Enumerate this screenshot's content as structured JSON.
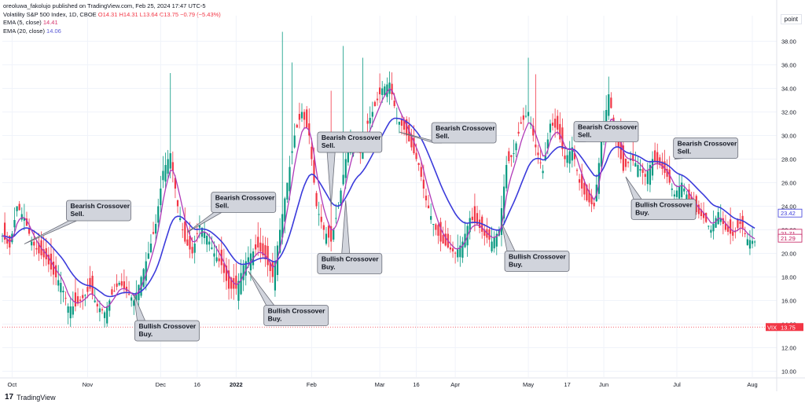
{
  "header": {
    "publisher": "oreoluwa_fakolujo published on TradingView.com, Feb 25, 2024 17:47 UTC-5",
    "symbol_line": "Volatility S&P 500 Index, 1D, CBOE",
    "ohlc": {
      "o": "O14.31",
      "h": "H14.31",
      "l": "L13.64",
      "c": "C13.75",
      "chg": "−0.79 (−5.43%)"
    },
    "ema5_label": "EMA (5, close)",
    "ema5_value": "14.41",
    "ema20_label": "EMA (20, close)",
    "ema20_value": "14.06"
  },
  "settings_label": "point",
  "footer": {
    "logo": "17",
    "brand": "TradingView"
  },
  "colors": {
    "up": "#089981",
    "down": "#f23645",
    "ema5": "#c2185b",
    "ema20": "#3b3bdb",
    "ema5_line": "#b03ab8"
  },
  "chart_data": {
    "type": "candlestick",
    "title": "Volatility S&P 500 Index, 1D, CBOE",
    "y_ticks": [
      "38.00",
      "36.00",
      "34.00",
      "32.00",
      "30.00",
      "28.00",
      "26.00",
      "24.00",
      "22.00",
      "20.00",
      "18.00",
      "16.00",
      "14.00",
      "12.00",
      "10.00"
    ],
    "ylim": [
      9.5,
      39.5
    ],
    "x_ticks": [
      {
        "label": "Oct",
        "day": 4,
        "bold": false
      },
      {
        "label": "Nov",
        "day": 35,
        "bold": false
      },
      {
        "label": "Dec",
        "day": 65,
        "bold": false
      },
      {
        "label": "16",
        "day": 80,
        "bold": false
      },
      {
        "label": "2022",
        "day": 96,
        "bold": true
      },
      {
        "label": "Feb",
        "day": 127,
        "bold": false
      },
      {
        "label": "Mar",
        "day": 155,
        "bold": false
      },
      {
        "label": "16",
        "day": 170,
        "bold": false
      },
      {
        "label": "Apr",
        "day": 186,
        "bold": false
      },
      {
        "label": "May",
        "day": 216,
        "bold": false
      },
      {
        "label": "17",
        "day": 232,
        "bold": false
      },
      {
        "label": "Jun",
        "day": 247,
        "bold": false
      },
      {
        "label": "Jul",
        "day": 277,
        "bold": false
      },
      {
        "label": "Aug",
        "day": 308,
        "bold": false
      }
    ],
    "xlim": [
      0,
      318
    ],
    "close_points": [
      [
        0,
        21.5
      ],
      [
        3,
        20.5
      ],
      [
        6,
        24.0
      ],
      [
        9,
        23.0
      ],
      [
        12,
        21.0
      ],
      [
        15,
        20.0
      ],
      [
        18,
        19.5
      ],
      [
        21,
        18.2
      ],
      [
        24,
        17.5
      ],
      [
        27,
        15.5
      ],
      [
        30,
        15.5
      ],
      [
        33,
        16.2
      ],
      [
        36,
        17.0
      ],
      [
        39,
        15.5
      ],
      [
        42,
        15.0
      ],
      [
        45,
        16.5
      ],
      [
        48,
        17.5
      ],
      [
        51,
        16.8
      ],
      [
        54,
        16.0
      ],
      [
        57,
        18.0
      ],
      [
        60,
        20.0
      ],
      [
        63,
        22.5
      ],
      [
        66,
        27.0
      ],
      [
        69,
        28.5
      ],
      [
        72,
        24.0
      ],
      [
        75,
        21.0
      ],
      [
        78,
        20.0
      ],
      [
        81,
        22.5
      ],
      [
        84,
        21.5
      ],
      [
        87,
        20.0
      ],
      [
        90,
        19.0
      ],
      [
        93,
        17.0
      ],
      [
        96,
        17.0
      ],
      [
        99,
        19.0
      ],
      [
        102,
        20.0
      ],
      [
        105,
        20.5
      ],
      [
        108,
        19.5
      ],
      [
        111,
        18.0
      ],
      [
        114,
        22.0
      ],
      [
        117,
        26.0
      ],
      [
        120,
        30.0
      ],
      [
        123,
        32.0
      ],
      [
        126,
        30.0
      ],
      [
        129,
        24.0
      ],
      [
        132,
        22.0
      ],
      [
        135,
        21.0
      ],
      [
        138,
        24.0
      ],
      [
        141,
        28.0
      ],
      [
        144,
        30.0
      ],
      [
        147,
        28.5
      ],
      [
        150,
        31.0
      ],
      [
        153,
        32.5
      ],
      [
        156,
        34.0
      ],
      [
        159,
        34.5
      ],
      [
        162,
        31.5
      ],
      [
        165,
        30.5
      ],
      [
        168,
        29.0
      ],
      [
        171,
        27.5
      ],
      [
        174,
        24.5
      ],
      [
        177,
        22.5
      ],
      [
        180,
        21.0
      ],
      [
        183,
        20.5
      ],
      [
        186,
        20.0
      ],
      [
        189,
        21.0
      ],
      [
        192,
        23.0
      ],
      [
        195,
        22.5
      ],
      [
        198,
        21.5
      ],
      [
        201,
        21.0
      ],
      [
        204,
        22.0
      ],
      [
        207,
        27.5
      ],
      [
        210,
        28.5
      ],
      [
        213,
        31.0
      ],
      [
        216,
        32.0
      ],
      [
        219,
        29.0
      ],
      [
        222,
        27.0
      ],
      [
        225,
        31.0
      ],
      [
        228,
        30.5
      ],
      [
        231,
        28.0
      ],
      [
        234,
        29.0
      ],
      [
        237,
        26.0
      ],
      [
        240,
        24.5
      ],
      [
        243,
        24.0
      ],
      [
        246,
        29.5
      ],
      [
        249,
        33.5
      ],
      [
        252,
        30.0
      ],
      [
        255,
        27.0
      ],
      [
        258,
        28.0
      ],
      [
        261,
        27.5
      ],
      [
        264,
        26.5
      ],
      [
        267,
        28.0
      ],
      [
        270,
        27.5
      ],
      [
        273,
        26.5
      ],
      [
        276,
        25.0
      ],
      [
        279,
        26.0
      ],
      [
        282,
        24.5
      ],
      [
        285,
        23.5
      ],
      [
        288,
        23.0
      ],
      [
        291,
        22.0
      ],
      [
        294,
        23.5
      ],
      [
        297,
        22.0
      ],
      [
        300,
        21.5
      ],
      [
        303,
        22.5
      ],
      [
        306,
        21.2
      ],
      [
        309,
        21.0
      ]
    ],
    "wick_spikes": [
      [
        115,
        38.8
      ],
      [
        119,
        36.2
      ],
      [
        140,
        37.6
      ],
      [
        148,
        36.6
      ],
      [
        135,
        33.8
      ],
      [
        216,
        36.6
      ],
      [
        219,
        35.2
      ],
      [
        249,
        35.0
      ],
      [
        69,
        35.3
      ]
    ],
    "annotations": [
      {
        "line1": "Bearish Crossover",
        "line2": "Sell.",
        "day": 9,
        "value": 20.8,
        "box_day": 26.3,
        "box_value": 24.5
      },
      {
        "line1": "Bullish Crossover",
        "line2": "Buy.",
        "day": 54,
        "value": 16.5,
        "box_day": 54.4,
        "box_value": 14.3
      },
      {
        "line1": "Bearish Crossover",
        "line2": "Sell.",
        "day": 76,
        "value": 21.8,
        "box_day": 85.8,
        "box_value": 25.2
      },
      {
        "line1": "Bullish Crossover",
        "line2": "Buy.",
        "day": 101,
        "value": 18.5,
        "box_day": 107.4,
        "box_value": 15.6
      },
      {
        "line1": "Bearish Crossover",
        "line2": "Sell.",
        "day": 135,
        "value": 24.0,
        "box_day": 129.4,
        "box_value": 30.3
      },
      {
        "line1": "Bullish Crossover",
        "line2": "Buy.",
        "day": 141,
        "value": 24.5,
        "box_day": 129.4,
        "box_value": 20.0
      },
      {
        "line1": "Bearish Crossover",
        "line2": "Sell.",
        "day": 163,
        "value": 30.3,
        "box_day": 176.3,
        "box_value": 31.1
      },
      {
        "line1": "Bullish Crossover",
        "line2": "Buy.",
        "day": 205,
        "value": 22.6,
        "box_day": 206.3,
        "box_value": 20.2
      },
      {
        "line1": "Bearish Crossover",
        "line2": "Sell.",
        "day": 238,
        "value": 29.5,
        "box_day": 234.7,
        "box_value": 31.2
      },
      {
        "line1": "Bullish Crossover",
        "line2": "Buy.",
        "day": 256,
        "value": 26.5,
        "box_day": 258.3,
        "box_value": 24.6
      },
      {
        "line1": "Bearish Crossover",
        "line2": "Sell.",
        "day": 276,
        "value": 28.0,
        "box_day": 275.6,
        "box_value": 29.8
      }
    ],
    "price_labels": [
      {
        "text": "23.42",
        "value": 23.42,
        "style": "ema20"
      },
      {
        "text": "21.71",
        "value": 21.71,
        "style": "ema5"
      },
      {
        "text": "21.29",
        "value": 21.29,
        "style": "ema5"
      }
    ],
    "last_price": {
      "symbol": "VIX",
      "value": 13.75,
      "text": "13.75"
    }
  }
}
